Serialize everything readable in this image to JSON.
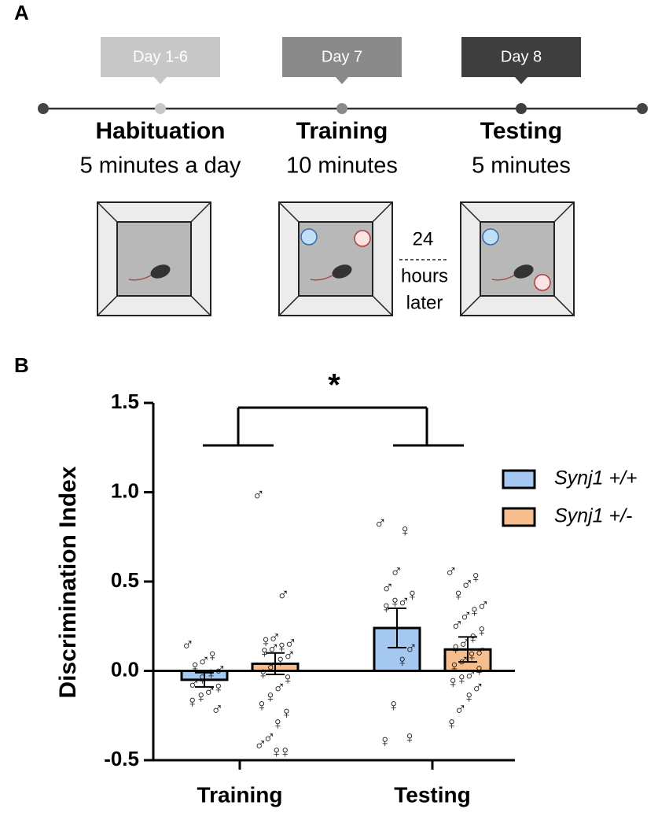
{
  "panel_labels": [
    "A",
    "B"
  ],
  "stages": [
    {
      "day": "Day 1-6",
      "name": "Habituation",
      "duration": "5 minutes a day"
    },
    {
      "day": "Day 7",
      "name": "Training",
      "duration": "10 minutes"
    },
    {
      "day": "Day 8",
      "name": "Testing",
      "duration": "5 minutes"
    }
  ],
  "delay": [
    "24",
    "hours",
    "later"
  ],
  "chart_data": {
    "type": "bar",
    "y_label": "Discrimination Index",
    "categories": [
      "Training",
      "Testing"
    ],
    "ylim": [
      -0.5,
      1.5
    ],
    "yticks": [
      1.5,
      {
        "value": 1.0,
        "label": "1.0"
      },
      0.5,
      {
        "value": 0.0,
        "label": "0.0"
      },
      -0.5
    ],
    "annotation": "*",
    "series": [
      {
        "name": "Synj1 +/+",
        "color": "#a4c8f0",
        "values": [
          -0.05,
          0.24
        ],
        "errors": [
          0.04,
          0.11
        ],
        "points": [
          [
            0.14,
            0.08,
            0.05,
            0.02,
            0.0,
            -0.02,
            -0.05,
            -0.08,
            -0.1,
            -0.12,
            -0.15,
            -0.18,
            -0.22
          ],
          [
            0.82,
            0.78,
            0.55,
            0.46,
            0.42,
            0.38,
            0.38,
            0.35,
            0.12,
            0.05,
            -0.2,
            -0.4,
            -0.38
          ]
        ],
        "sex": [
          [
            "♂",
            "♀",
            "♂",
            "♀",
            "♂",
            "♀",
            "♀",
            "♂",
            "♀",
            "♂",
            "♀",
            "♀",
            "♂"
          ],
          [
            "♂",
            "♀",
            "♂",
            "♂",
            "♀",
            "♂",
            "♀",
            "♀",
            "♂",
            "♀",
            "♀",
            "♀",
            "♀"
          ]
        ]
      },
      {
        "name": "Synj1 +/-",
        "color": "#f6be8c",
        "values": [
          0.04,
          0.12
        ],
        "errors": [
          0.06,
          0.07
        ],
        "points": [
          [
            0.98,
            0.42,
            0.18,
            0.16,
            0.15,
            0.13,
            0.12,
            0.1,
            0.08,
            0.05,
            0.02,
            -0.02,
            -0.05,
            -0.1,
            -0.15,
            -0.2,
            -0.24,
            -0.3,
            -0.38,
            -0.42,
            -0.46,
            -0.46
          ],
          [
            0.55,
            0.52,
            0.48,
            0.42,
            0.36,
            0.33,
            0.3,
            0.25,
            0.22,
            0.18,
            0.15,
            0.12,
            0.1,
            0.08,
            0.05,
            0.02,
            0.0,
            -0.03,
            -0.05,
            -0.07,
            -0.1,
            -0.15,
            -0.22,
            -0.3
          ]
        ],
        "sex": [
          [
            "♂",
            "♂",
            "♂",
            "♀",
            "♂",
            "♀",
            "♂",
            "♀",
            "♂",
            "♀",
            "♂",
            "♀",
            "♀",
            "♂",
            "♀",
            "♀",
            "♀",
            "♀",
            "♂",
            "♂",
            "♀",
            "♀"
          ],
          [
            "♂",
            "♀",
            "♂",
            "♀",
            "♂",
            "♀",
            "♂",
            "♂",
            "♀",
            "♀",
            "♂",
            "♀",
            "♂",
            "♀",
            "♂",
            "♀",
            "♀",
            "♂",
            "♀",
            "♀",
            "♂",
            "♀",
            "♂",
            "♀"
          ]
        ]
      }
    ]
  }
}
